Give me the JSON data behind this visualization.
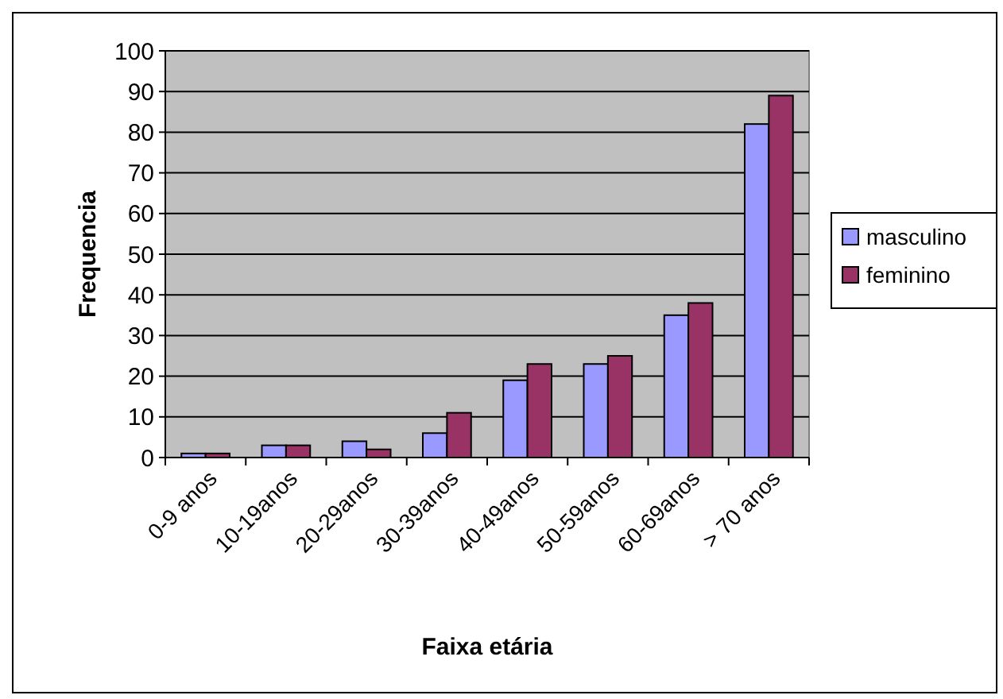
{
  "chart_data": {
    "type": "bar",
    "xlabel": "Faixa etária",
    "ylabel": "Frequencia",
    "categories": [
      "0-9 anos",
      "10-19anos",
      "20-29anos",
      "30-39anos",
      "40-49anos",
      "50-59anos",
      "60-69anos",
      "> 70 anos"
    ],
    "series": [
      {
        "name": "masculino",
        "color": "#9999ff",
        "values": [
          1,
          3,
          4,
          6,
          19,
          23,
          35,
          82
        ]
      },
      {
        "name": "feminino",
        "color": "#993366",
        "values": [
          1,
          3,
          2,
          11,
          23,
          25,
          38,
          89
        ]
      }
    ],
    "ylim": [
      0,
      100
    ],
    "yticks": [
      0,
      10,
      20,
      30,
      40,
      50,
      60,
      70,
      80,
      90,
      100
    ],
    "grid": "y",
    "legend": "right"
  }
}
